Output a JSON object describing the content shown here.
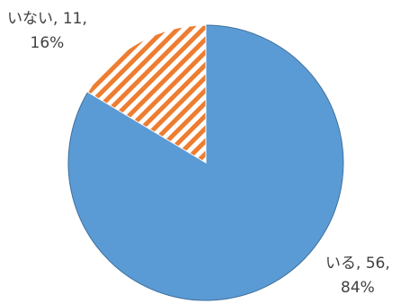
{
  "chart_data": {
    "type": "pie",
    "slices": [
      {
        "label": "いる",
        "value": 56,
        "percent": "84%",
        "value_text": "56",
        "color": "#5b9bd5",
        "fill": "solid"
      },
      {
        "label": "いない",
        "value": 11,
        "percent": "16%",
        "value_text": "11",
        "color": "#ed7d31",
        "fill": "diagonal-stripes"
      }
    ],
    "start_angle_deg": 0,
    "direction": "clockwise"
  }
}
